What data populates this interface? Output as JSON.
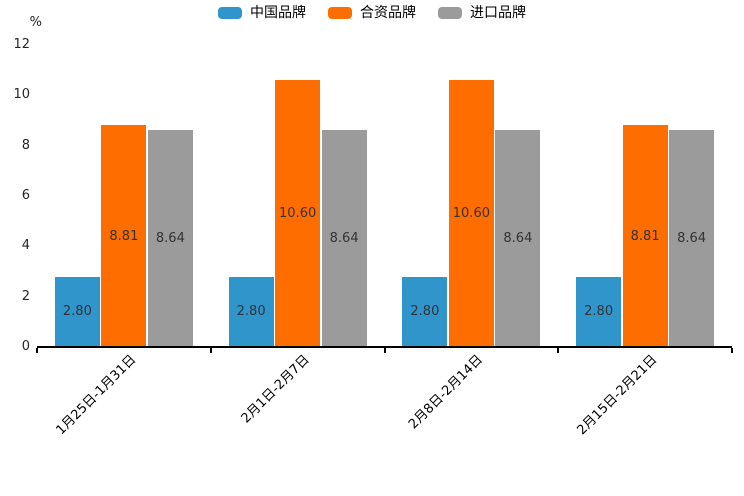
{
  "chart": {
    "unit_label": "%",
    "background": "#ffffff",
    "axis_color": "#000000",
    "value_label_color": "#333333"
  },
  "chart_data": {
    "type": "bar",
    "title": "",
    "categories": [
      "1月25日-1月31日",
      "2月1日-2月7日",
      "2月8日-2月14日",
      "2月15日-2月21日"
    ],
    "series": [
      {
        "name": "中国品牌",
        "color": "#2F95CB",
        "values": [
          2.8,
          2.8,
          2.8,
          2.8
        ]
      },
      {
        "name": "合资品牌",
        "color": "#FE6D00",
        "values": [
          8.81,
          10.6,
          10.6,
          8.81
        ]
      },
      {
        "name": "进口品牌",
        "color": "#9B9B9B",
        "values": [
          8.64,
          8.64,
          8.64,
          8.64
        ]
      }
    ],
    "xlabel": "",
    "ylabel": "%",
    "ylim": [
      0,
      12
    ],
    "yticks": [
      0,
      2,
      4,
      6,
      8,
      10,
      12
    ],
    "grid": false,
    "legend_position": "top",
    "value_labels_shown": true,
    "value_label_format": "2-decimals",
    "xtick_rotation_deg": 45
  }
}
